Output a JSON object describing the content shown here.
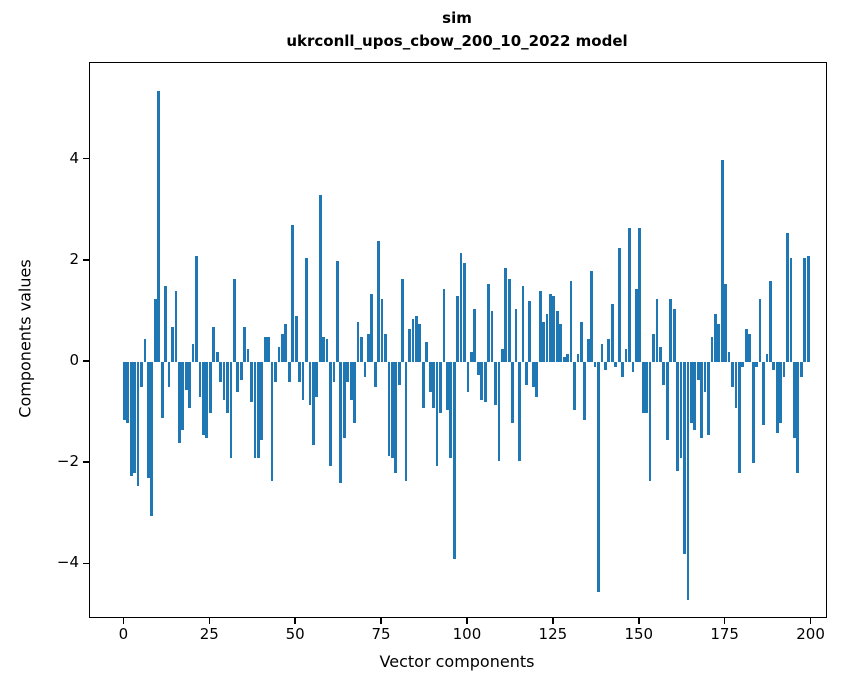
{
  "title": {
    "line1": "sim",
    "line2": "ukrconll_upos_cbow_200_10_2022 model"
  },
  "chart_data": {
    "type": "bar",
    "title": "sim\nukrconll_upos_cbow_200_10_2022 model",
    "xlabel": "Vector components",
    "ylabel": "Components values",
    "bar_color": "#1f77b4",
    "axis_color": "#000000",
    "grid": false,
    "legend": null,
    "x_ticks": [
      0,
      25,
      50,
      75,
      100,
      125,
      150,
      175,
      200
    ],
    "y_ticks": [
      -4,
      -2,
      0,
      2,
      4
    ],
    "xlim": [
      -10,
      204.2
    ],
    "ylim": [
      -5.04,
      5.91
    ],
    "bar_width_units": 0.8,
    "n_bars": 200,
    "x_start": 0,
    "values": [
      -1.15,
      -1.2,
      -2.25,
      -2.2,
      -2.45,
      -0.5,
      0.45,
      -2.3,
      -3.05,
      1.25,
      5.35,
      -1.1,
      1.5,
      -0.5,
      0.7,
      1.4,
      -1.6,
      -1.35,
      -0.55,
      -0.9,
      0.35,
      2.1,
      -0.7,
      -1.45,
      -1.5,
      -1.0,
      0.7,
      0.2,
      -0.4,
      -0.75,
      -1.0,
      -1.9,
      1.65,
      -0.6,
      -0.35,
      0.7,
      0.25,
      -0.8,
      -1.9,
      -1.9,
      -1.55,
      0.5,
      0.5,
      -2.35,
      -0.4,
      0.3,
      0.55,
      0.75,
      -0.4,
      2.7,
      0.9,
      -0.4,
      -0.75,
      2.05,
      -0.85,
      -1.65,
      -0.7,
      3.3,
      0.5,
      0.45,
      -2.05,
      -0.4,
      2.0,
      -2.4,
      -1.5,
      -0.4,
      -0.75,
      -1.2,
      0.8,
      0.5,
      -0.3,
      0.55,
      1.35,
      -0.5,
      2.4,
      1.25,
      0.55,
      -1.85,
      -1.9,
      -2.2,
      -0.45,
      1.65,
      -2.35,
      0.65,
      0.85,
      0.9,
      0.75,
      -0.9,
      0.4,
      -0.6,
      -0.9,
      -2.05,
      -1.0,
      1.45,
      -0.95,
      -1.9,
      -3.9,
      1.3,
      2.15,
      1.95,
      -0.6,
      0.2,
      1.05,
      -0.25,
      -0.75,
      -0.8,
      1.55,
      1.0,
      -0.85,
      -1.95,
      0.25,
      1.85,
      1.65,
      -1.2,
      1.05,
      -1.95,
      1.5,
      -0.45,
      1.2,
      -0.5,
      -0.7,
      1.4,
      0.8,
      0.95,
      1.35,
      1.3,
      1.0,
      0.75,
      0.1,
      0.15,
      1.6,
      -0.95,
      0.15,
      0.8,
      -1.15,
      0.45,
      1.8,
      -0.1,
      -4.55,
      0.35,
      -0.15,
      0.45,
      1.15,
      -0.1,
      2.25,
      -0.3,
      0.25,
      2.65,
      -0.2,
      1.45,
      2.65,
      -1.0,
      -1.0,
      -2.35,
      0.55,
      1.25,
      0.3,
      -0.45,
      -1.55,
      1.25,
      1.05,
      -2.15,
      -1.9,
      -3.8,
      -4.7,
      -1.2,
      -1.35,
      -0.35,
      -1.5,
      -0.6,
      -1.45,
      0.5,
      0.95,
      0.75,
      4.0,
      1.55,
      0.2,
      -0.5,
      -0.9,
      -2.2,
      -0.1,
      0.65,
      0.55,
      -2.0,
      -0.1,
      1.25,
      -1.25,
      0.15,
      1.6,
      -0.15,
      -1.4,
      -1.2,
      -0.3,
      2.55,
      2.05,
      -1.5,
      -2.2,
      -0.3,
      2.05,
      2.1
    ]
  }
}
